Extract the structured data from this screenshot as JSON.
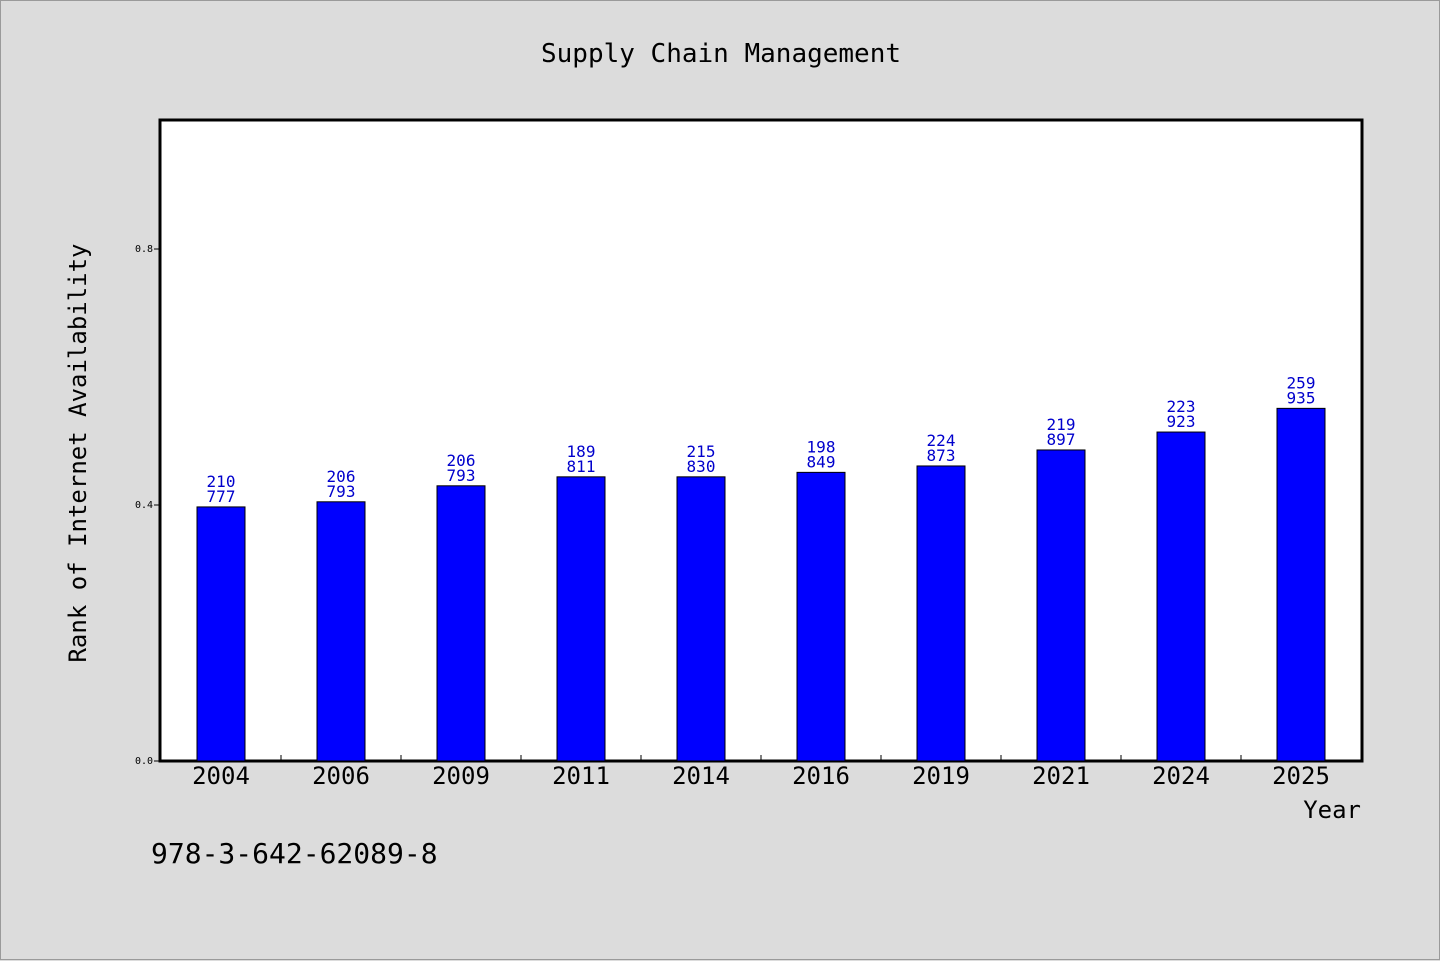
{
  "chart_data": {
    "type": "bar",
    "title": "Supply Chain Management",
    "xlabel": "Year",
    "ylabel": "Rank of Internet Availability",
    "categories": [
      "2004",
      "2006",
      "2009",
      "2011",
      "2014",
      "2016",
      "2019",
      "2021",
      "2024",
      "2025"
    ],
    "values": [
      0.397,
      0.405,
      0.43,
      0.444,
      0.444,
      0.451,
      0.461,
      0.486,
      0.514,
      0.551
    ],
    "data_labels": [
      [
        "210",
        "777"
      ],
      [
        "206",
        "793"
      ],
      [
        "206",
        "793"
      ],
      [
        "189",
        "811"
      ],
      [
        "215",
        "830"
      ],
      [
        "198",
        "849"
      ],
      [
        "224",
        "873"
      ],
      [
        "219",
        "897"
      ],
      [
        "223",
        "923"
      ],
      [
        "259",
        "935"
      ]
    ],
    "yticks": [
      "0.0",
      "0.4",
      "0.8"
    ],
    "ylim": [
      0,
      1.0
    ],
    "bar_color": "#0000ff",
    "label_color": "#0000cc",
    "grid": false,
    "legend": "none"
  },
  "footer": {
    "code": "978-3-642-62089-8"
  }
}
